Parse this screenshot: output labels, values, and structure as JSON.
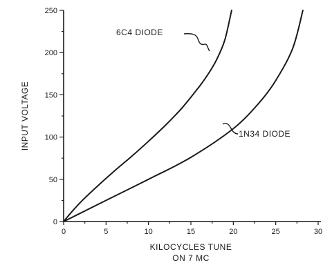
{
  "chart_data": {
    "type": "line",
    "title": "",
    "xlabel": [
      "KILOCYCLES TUNE",
      "ON 7 MC"
    ],
    "ylabel": "INPUT VOLTAGE",
    "xlim": [
      0,
      30
    ],
    "ylim": [
      0,
      250
    ],
    "xticks": [
      0,
      5,
      10,
      15,
      20,
      25,
      30
    ],
    "yticks": [
      0,
      50,
      100,
      150,
      200,
      250
    ],
    "grid": false,
    "legend": "none",
    "series": [
      {
        "name": "6C4 DIODE",
        "x": [
          0,
          1,
          2.2,
          4,
          6,
          8,
          10,
          12,
          14,
          16,
          17,
          18,
          19,
          19.8
        ],
        "y": [
          0,
          12,
          25,
          42,
          60,
          77,
          95,
          114,
          135,
          160,
          174,
          191,
          215,
          250
        ]
      },
      {
        "name": "1N34 DIODE",
        "x": [
          0,
          2,
          5,
          10,
          15,
          20,
          23,
          25,
          27,
          28.2
        ],
        "y": [
          0,
          10,
          25,
          50,
          76,
          110,
          140,
          167,
          205,
          250
        ]
      }
    ]
  }
}
